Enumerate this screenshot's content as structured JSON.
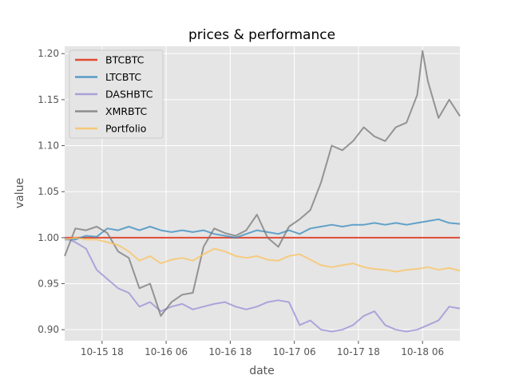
{
  "chart_data": {
    "type": "line",
    "title": "prices & performance",
    "xlabel": "date",
    "ylabel": "value",
    "x_unit": "hours since 2017-10-15 11:00",
    "x_ticks": [
      {
        "label": "10-15 18",
        "x": 7
      },
      {
        "label": "10-16 06",
        "x": 19
      },
      {
        "label": "10-16 18",
        "x": 31
      },
      {
        "label": "10-17 06",
        "x": 43
      },
      {
        "label": "10-17 18",
        "x": 55
      },
      {
        "label": "10-18 06",
        "x": 67
      }
    ],
    "xlim": [
      0,
      74
    ],
    "ylim": [
      0.888,
      1.208
    ],
    "y_ticks": [
      0.9,
      0.95,
      1.0,
      1.05,
      1.1,
      1.15,
      1.2
    ],
    "grid": true,
    "legend_position": "top-left",
    "series": [
      {
        "name": "BTCBTC",
        "color": "#E24A33",
        "x": [
          0,
          74
        ],
        "y": [
          1.0,
          1.0
        ]
      },
      {
        "name": "LTCBTC",
        "color": "#348ABD",
        "x": [
          0,
          2,
          4,
          6,
          8,
          10,
          12,
          14,
          16,
          18,
          20,
          22,
          24,
          26,
          28,
          30,
          32,
          34,
          36,
          38,
          40,
          42,
          44,
          46,
          48,
          50,
          52,
          54,
          56,
          58,
          60,
          62,
          64,
          66,
          68,
          70,
          72,
          74
        ],
        "y": [
          0.998,
          0.998,
          1.002,
          1.001,
          1.01,
          1.008,
          1.012,
          1.008,
          1.012,
          1.008,
          1.006,
          1.008,
          1.006,
          1.008,
          1.004,
          1.002,
          1.0,
          1.004,
          1.008,
          1.006,
          1.004,
          1.008,
          1.004,
          1.01,
          1.012,
          1.014,
          1.012,
          1.014,
          1.014,
          1.016,
          1.014,
          1.016,
          1.014,
          1.016,
          1.018,
          1.02,
          1.016,
          1.015
        ]
      },
      {
        "name": "DASHBTC",
        "color": "#988ED5",
        "x": [
          0,
          2,
          4,
          6,
          8,
          10,
          12,
          14,
          16,
          18,
          20,
          22,
          24,
          26,
          28,
          30,
          32,
          34,
          36,
          38,
          40,
          42,
          44,
          46,
          48,
          50,
          52,
          54,
          56,
          58,
          60,
          62,
          64,
          66,
          68,
          70,
          72,
          74
        ],
        "y": [
          1.0,
          0.995,
          0.988,
          0.965,
          0.955,
          0.945,
          0.94,
          0.925,
          0.93,
          0.92,
          0.925,
          0.928,
          0.922,
          0.925,
          0.928,
          0.93,
          0.925,
          0.922,
          0.925,
          0.93,
          0.932,
          0.93,
          0.905,
          0.91,
          0.9,
          0.898,
          0.9,
          0.905,
          0.915,
          0.92,
          0.905,
          0.9,
          0.898,
          0.9,
          0.905,
          0.91,
          0.925,
          0.923
        ]
      },
      {
        "name": "XMRBTC",
        "color": "#777777",
        "x": [
          0,
          2,
          4,
          6,
          8,
          10,
          12,
          14,
          16,
          18,
          20,
          22,
          24,
          26,
          28,
          30,
          32,
          34,
          36,
          38,
          40,
          42,
          44,
          46,
          48,
          50,
          52,
          54,
          56,
          58,
          60,
          62,
          64,
          66,
          67,
          68,
          70,
          72,
          74
        ],
        "y": [
          0.98,
          1.01,
          1.008,
          1.012,
          1.005,
          0.985,
          0.978,
          0.945,
          0.95,
          0.915,
          0.93,
          0.938,
          0.94,
          0.99,
          1.01,
          1.005,
          1.002,
          1.008,
          1.025,
          1.0,
          0.99,
          1.012,
          1.02,
          1.03,
          1.06,
          1.1,
          1.095,
          1.105,
          1.12,
          1.11,
          1.105,
          1.12,
          1.125,
          1.155,
          1.203,
          1.17,
          1.13,
          1.15,
          1.132
        ]
      },
      {
        "name": "Portfolio",
        "color": "#FBC15E",
        "x": [
          0,
          2,
          4,
          6,
          8,
          10,
          12,
          14,
          16,
          18,
          20,
          22,
          24,
          26,
          28,
          30,
          32,
          34,
          36,
          38,
          40,
          42,
          44,
          46,
          48,
          50,
          52,
          54,
          56,
          58,
          60,
          62,
          64,
          66,
          68,
          70,
          72,
          74
        ],
        "y": [
          0.998,
          1.0,
          0.998,
          0.998,
          0.995,
          0.992,
          0.985,
          0.975,
          0.98,
          0.972,
          0.976,
          0.978,
          0.975,
          0.982,
          0.988,
          0.985,
          0.98,
          0.978,
          0.98,
          0.976,
          0.975,
          0.98,
          0.982,
          0.976,
          0.97,
          0.968,
          0.97,
          0.972,
          0.968,
          0.966,
          0.965,
          0.963,
          0.965,
          0.966,
          0.968,
          0.965,
          0.967,
          0.964
        ]
      }
    ]
  }
}
